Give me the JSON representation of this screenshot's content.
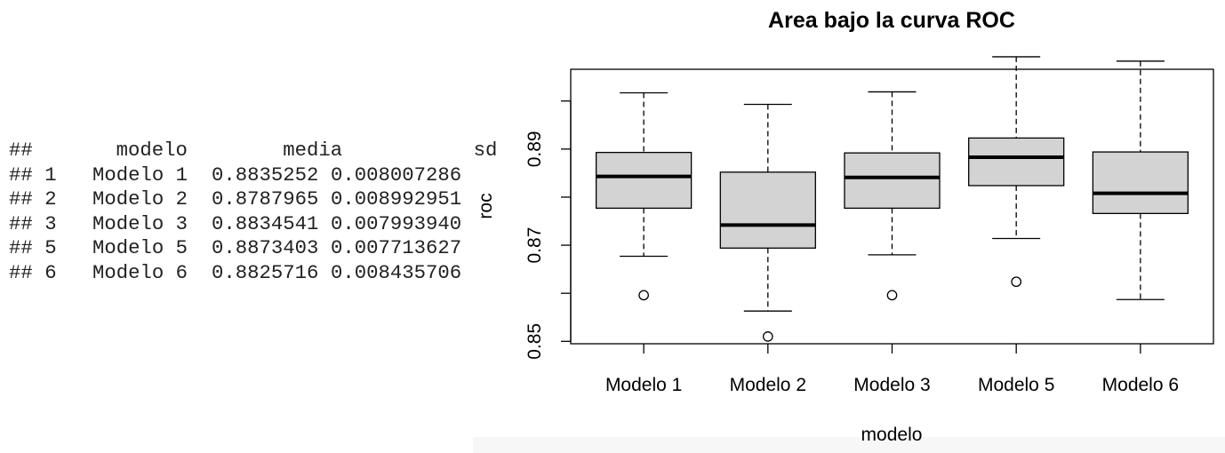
{
  "console": {
    "header": [
      "##",
      "modelo",
      "media",
      "sd"
    ],
    "rows": [
      [
        "##",
        "1",
        "Modelo 1",
        "0.8835252",
        "0.008007286"
      ],
      [
        "##",
        "2",
        "Modelo 2",
        "0.8787965",
        "0.008992951"
      ],
      [
        "##",
        "3",
        "Modelo 3",
        "0.8834541",
        "0.007993940"
      ],
      [
        "##",
        "5",
        "Modelo 5",
        "0.8873403",
        "0.007713627"
      ],
      [
        "##",
        "6",
        "Modelo 6",
        "0.8825716",
        "0.008435706"
      ]
    ]
  },
  "chart_data": {
    "type": "boxplot",
    "title": "Area bajo la curva ROC",
    "xlabel": "modelo",
    "ylabel": "roc",
    "ylim": [
      0.8495,
      0.9066
    ],
    "yticks": [
      0.85,
      0.87,
      0.89
    ],
    "grid": false,
    "colors": {
      "box_fill": "#d3d3d3",
      "stroke": "#000000",
      "median": "#000000"
    },
    "categories": [
      "Modelo 1",
      "Modelo 2",
      "Modelo 3",
      "Modelo 5",
      "Modelo 6"
    ],
    "boxes": [
      {
        "category": "Modelo 1",
        "whisker_low": 0.8677,
        "q1": 0.8777,
        "median": 0.8843,
        "q3": 0.8893,
        "whisker_high": 0.9017,
        "outliers": [
          0.8596
        ]
      },
      {
        "category": "Modelo 2",
        "whisker_low": 0.8563,
        "q1": 0.8694,
        "median": 0.8742,
        "q3": 0.8852,
        "whisker_high": 0.8993,
        "outliers": [
          0.851
        ]
      },
      {
        "category": "Modelo 3",
        "whisker_low": 0.868,
        "q1": 0.8777,
        "median": 0.8841,
        "q3": 0.8892,
        "whisker_high": 0.9019,
        "outliers": [
          0.8596
        ]
      },
      {
        "category": "Modelo 5",
        "whisker_low": 0.8714,
        "q1": 0.8824,
        "median": 0.8883,
        "q3": 0.8923,
        "whisker_high": 0.9092,
        "outliers": [
          0.8624
        ]
      },
      {
        "category": "Modelo 6",
        "whisker_low": 0.8587,
        "q1": 0.8766,
        "median": 0.8808,
        "q3": 0.8894,
        "whisker_high": 0.9083,
        "outliers": []
      }
    ]
  }
}
